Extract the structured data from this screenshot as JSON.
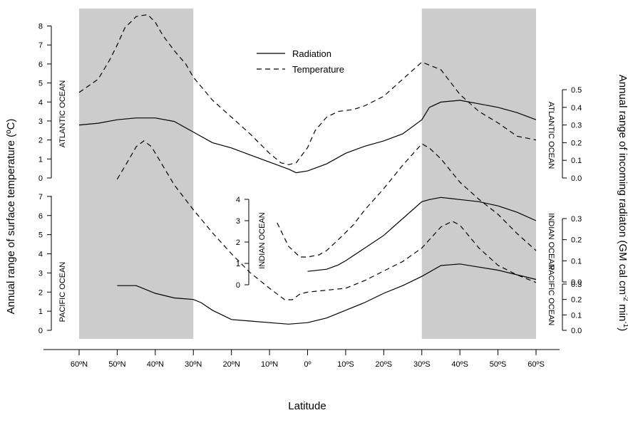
{
  "chart_data": {
    "type": "line",
    "xlabel": "Latitude",
    "ylabel_left": "Annual range of surface temperature (ºC)",
    "ylabel_right_base": "Annual range of incoming radiaton (GM cal cm",
    "ylabel_right_sup1": "-2",
    "ylabel_right_mid": " min",
    "ylabel_right_sup2": "-1",
    "ylabel_right_end": ")",
    "x_ticks": [
      "60ºN",
      "50ºN",
      "40ºN",
      "30ºN",
      "20ºN",
      "10ºN",
      "0º",
      "10ºS",
      "20ºS",
      "30ºS",
      "40ºS",
      "50ºS",
      "60ºS"
    ],
    "x_values": [
      -60,
      -50,
      -40,
      -30,
      -20,
      -10,
      0,
      10,
      20,
      30,
      40,
      50,
      60
    ],
    "shaded_bands": [
      [
        -60,
        -30
      ],
      [
        30,
        60
      ]
    ],
    "legend": {
      "position": "top-center",
      "entries": [
        {
          "label": "Radiation",
          "style": "solid"
        },
        {
          "label": "Temperature",
          "style": "dashed"
        }
      ]
    },
    "panels": [
      {
        "name": "ATLANTIC OCEAN",
        "left_axis": {
          "ticks": [
            0,
            1,
            2,
            3,
            4,
            5,
            6,
            7,
            8
          ],
          "labels": [
            "0",
            "1",
            "2",
            "3",
            "4",
            "5",
            "6",
            "7",
            "8"
          ]
        },
        "right_axis": {
          "ticks": [
            0.0,
            0.1,
            0.2,
            0.3,
            0.4,
            0.5
          ],
          "labels": [
            "0.0",
            "0.1",
            "0.2",
            "0.3",
            "0.4",
            "0.5"
          ]
        },
        "series": [
          {
            "name": "Temperature",
            "style": "dashed",
            "x": [
              -60,
              -55,
              -52,
              -50,
              -48,
              -45,
              -42,
              -40,
              -38,
              -35,
              -32,
              -30,
              -25,
              -20,
              -15,
              -10,
              -7,
              -5,
              -3,
              0,
              2,
              5,
              8,
              12,
              15,
              20,
              25,
              30,
              35,
              40,
              45,
              50,
              55,
              60
            ],
            "y": [
              4.5,
              5.2,
              6.2,
              7.0,
              7.9,
              8.5,
              8.6,
              8.2,
              7.5,
              6.7,
              6.0,
              5.3,
              4.1,
              3.2,
              2.3,
              1.3,
              0.8,
              0.7,
              0.8,
              1.6,
              2.5,
              3.2,
              3.5,
              3.6,
              3.8,
              4.3,
              5.2,
              6.1,
              5.7,
              4.4,
              3.5,
              2.9,
              2.2,
              2.0
            ]
          },
          {
            "name": "Radiation",
            "style": "solid",
            "x": [
              -60,
              -55,
              -50,
              -45,
              -40,
              -35,
              -30,
              -25,
              -20,
              -15,
              -10,
              -5,
              -3,
              0,
              5,
              10,
              15,
              20,
              25,
              30,
              32,
              35,
              40,
              45,
              50,
              55,
              60
            ],
            "y": [
              0.3,
              0.31,
              0.33,
              0.34,
              0.34,
              0.32,
              0.26,
              0.2,
              0.17,
              0.13,
              0.09,
              0.05,
              0.03,
              0.04,
              0.08,
              0.14,
              0.18,
              0.21,
              0.25,
              0.33,
              0.4,
              0.43,
              0.44,
              0.42,
              0.4,
              0.37,
              0.33
            ]
          }
        ]
      },
      {
        "name": "INDIAN OCEAN",
        "left_axis": {
          "ticks": [
            0,
            1,
            2,
            3,
            4
          ],
          "labels": [
            "0",
            "1",
            "2",
            "3",
            "4"
          ]
        },
        "series": [
          {
            "name": "Temperature",
            "style": "dashed",
            "x": [
              -8,
              -5,
              -2,
              0,
              3,
              5,
              8,
              12,
              15,
              20,
              25,
              30,
              32,
              35,
              40,
              45,
              50,
              55,
              60
            ],
            "y": [
              2.9,
              1.8,
              1.3,
              1.3,
              1.4,
              1.6,
              2.1,
              2.8,
              3.5,
              4.5,
              5.6,
              6.6,
              6.4,
              5.9,
              4.8,
              4.0,
              3.3,
              2.4,
              1.6
            ]
          },
          {
            "name": "Radiation",
            "style": "solid",
            "x": [
              0,
              5,
              8,
              10,
              15,
              20,
              25,
              30,
              32,
              35,
              40,
              45,
              50,
              55,
              60
            ],
            "y": [
              0.05,
              0.06,
              0.08,
              0.1,
              0.16,
              0.22,
              0.3,
              0.38,
              0.39,
              0.4,
              0.39,
              0.38,
              0.36,
              0.33,
              0.29
            ]
          }
        ]
      },
      {
        "name": "PACIFIC OCEAN",
        "left_axis": {
          "ticks": [
            0,
            1,
            2,
            3,
            4,
            5,
            6,
            7
          ],
          "labels": [
            "0",
            "1",
            "2",
            "3",
            "4",
            "5",
            "6",
            "7"
          ]
        },
        "right_axis_upper": {
          "ticks": [
            0.0,
            0.1,
            0.2,
            0.3
          ],
          "labels": [
            "0.0",
            "0.1",
            "0.2",
            "0.3"
          ]
        },
        "right_axis_lower": {
          "ticks": [
            0.0,
            0.1,
            0.2,
            0.3
          ],
          "labels": [
            "0.0",
            "0.1",
            "0.2",
            "0.3"
          ]
        },
        "series": [
          {
            "name": "Temperature",
            "style": "dashed",
            "x": [
              -50,
              -47,
              -45,
              -43,
              -41,
              -38,
              -35,
              -30,
              -25,
              -20,
              -15,
              -10,
              -6,
              -4,
              -2,
              0,
              5,
              10,
              15,
              20,
              25,
              30,
              35,
              38,
              40,
              45,
              50,
              55,
              60
            ],
            "y": [
              7.9,
              8.9,
              9.6,
              9.9,
              9.6,
              8.6,
              7.6,
              6.3,
              5.1,
              4.0,
              3.0,
              2.2,
              1.6,
              1.6,
              1.9,
              2.0,
              2.1,
              2.2,
              2.6,
              3.1,
              3.6,
              4.3,
              5.4,
              5.7,
              5.5,
              4.3,
              3.4,
              2.9,
              2.5
            ]
          },
          {
            "name": "Radiation",
            "style": "solid",
            "x": [
              -50,
              -45,
              -40,
              -35,
              -30,
              -28,
              -25,
              -20,
              -15,
              -10,
              -5,
              0,
              5,
              10,
              15,
              20,
              25,
              30,
              35,
              40,
              45,
              50,
              55,
              60
            ],
            "y": [
              0.29,
              0.29,
              0.24,
              0.21,
              0.2,
              0.18,
              0.13,
              0.07,
              0.06,
              0.05,
              0.04,
              0.05,
              0.08,
              0.13,
              0.18,
              0.24,
              0.29,
              0.35,
              0.42,
              0.43,
              0.41,
              0.39,
              0.36,
              0.33
            ]
          }
        ]
      }
    ]
  }
}
